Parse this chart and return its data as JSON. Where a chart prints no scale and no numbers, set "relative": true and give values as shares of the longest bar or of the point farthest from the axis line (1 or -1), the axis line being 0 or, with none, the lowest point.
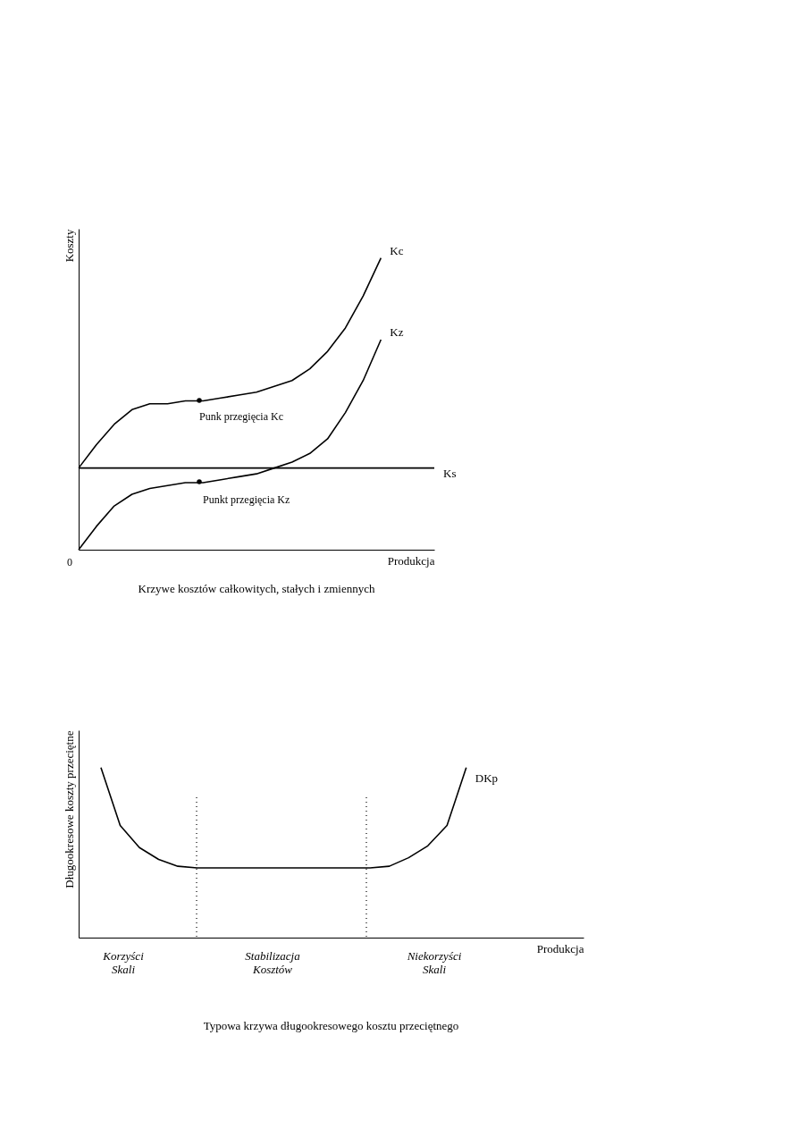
{
  "chart_data": [
    {
      "type": "line",
      "title": "Krzywe kosztów całkowitych, stałych i zmiennych",
      "xlabel": "Produkcja",
      "ylabel": "Koszty",
      "relative": true,
      "grid": false,
      "categories": [
        null,
        null,
        null,
        null,
        null,
        null,
        null,
        null,
        null,
        null,
        null,
        null,
        null,
        null,
        null,
        null,
        null,
        null,
        null,
        null,
        null
      ],
      "series": [
        {
          "name": "Kc",
          "color": "#000000",
          "values": [
            0.28,
            0.36,
            0.43,
            0.48,
            0.5,
            0.5,
            0.51,
            0.51,
            0.52,
            0.53,
            0.54,
            0.56,
            0.58,
            0.62,
            0.68,
            0.76,
            0.87,
            1.0,
            null,
            null,
            null
          ]
        },
        {
          "name": "Kz",
          "color": "#000000",
          "values": [
            0.0,
            0.08,
            0.15,
            0.19,
            0.21,
            0.22,
            0.23,
            0.23,
            0.24,
            0.25,
            0.26,
            0.28,
            0.3,
            0.33,
            0.38,
            0.47,
            0.58,
            0.72,
            null,
            null,
            null
          ]
        },
        {
          "name": "Ks",
          "color": "#000000",
          "values": [
            0.28,
            0.28,
            0.28,
            0.28,
            0.28,
            0.28,
            0.28,
            0.28,
            0.28,
            0.28,
            0.28,
            0.28,
            0.28,
            0.28,
            0.28,
            0.28,
            0.28,
            0.28,
            0.28,
            0.28,
            0.28
          ]
        }
      ],
      "annotations": [
        "0",
        "Punk przegięcia Kc",
        "Punkt przegięcia Kz"
      ]
    },
    {
      "type": "line",
      "title": "Typowa krzywa długookresowego kosztu przeciętnego",
      "xlabel": "Produkcja",
      "ylabel": "Długookresowe koszty przeciętne",
      "relative": true,
      "grid": false,
      "categories": [
        null,
        null,
        null,
        null,
        null,
        null,
        null,
        null,
        null,
        null,
        null,
        null,
        null,
        null,
        null,
        null,
        null,
        null,
        null,
        null
      ],
      "series": [
        {
          "name": "DKp",
          "color": "#000000",
          "values": [
            1.0,
            0.66,
            0.53,
            0.46,
            0.42,
            0.41,
            0.41,
            0.41,
            0.41,
            0.41,
            0.41,
            0.41,
            0.41,
            0.41,
            0.41,
            0.42,
            0.47,
            0.54,
            0.66,
            1.0
          ]
        }
      ],
      "annotations": [
        "Korzyści\nSkali",
        "Stabilizacja\nKosztów",
        "Niekorzyści\nSkali"
      ]
    }
  ]
}
